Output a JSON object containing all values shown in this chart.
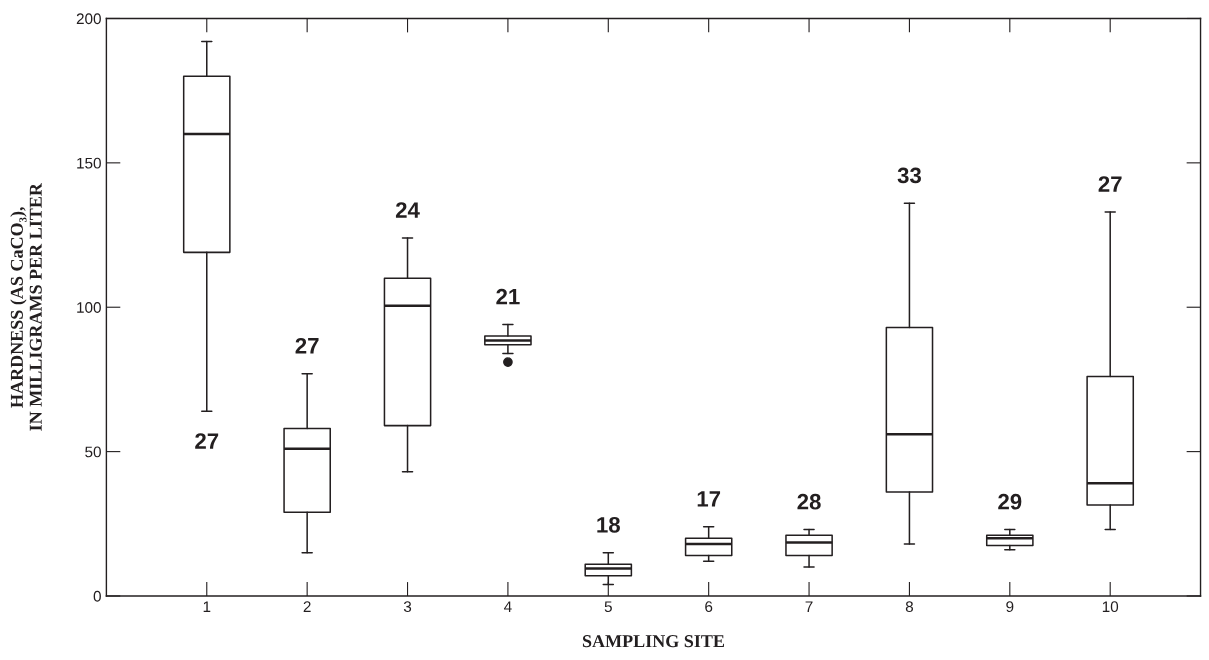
{
  "chart_data": {
    "type": "box",
    "xlabel": "SAMPLING SITE",
    "ylabel": "HARDNESS (AS CaCO₃),\nIN MILLIGRAMS PER LITER",
    "categories": [
      "1",
      "2",
      "3",
      "4",
      "5",
      "6",
      "7",
      "8",
      "9",
      "10"
    ],
    "boxes": [
      {
        "low": 64,
        "q1": 119,
        "median": 160,
        "q3": 180,
        "high": 192
      },
      {
        "low": 15,
        "q1": 29,
        "median": 51,
        "q3": 58,
        "high": 77
      },
      {
        "low": 43,
        "q1": 59,
        "median": 100.5,
        "q3": 110,
        "high": 124
      },
      {
        "low": 84,
        "q1": 87,
        "median": 88.5,
        "q3": 90,
        "high": 94,
        "outliers": [
          81
        ]
      },
      {
        "low": 4,
        "q1": 7,
        "median": 9.5,
        "q3": 11,
        "high": 15
      },
      {
        "low": 12,
        "q1": 14,
        "median": 18,
        "q3": 20,
        "high": 24
      },
      {
        "low": 10,
        "q1": 14,
        "median": 18.5,
        "q3": 21,
        "high": 23
      },
      {
        "low": 18,
        "q1": 36,
        "median": 56,
        "q3": 93,
        "high": 136
      },
      {
        "low": 16,
        "q1": 17.5,
        "median": 20,
        "q3": 21,
        "high": 23
      },
      {
        "low": 23,
        "q1": 31.5,
        "median": 39,
        "q3": 76,
        "high": 133
      }
    ],
    "annotations": [
      "27",
      "27",
      "24",
      "21",
      "18",
      "17",
      "28",
      "33",
      "29",
      "27"
    ],
    "ylim": [
      0,
      200
    ],
    "yticks": [
      0,
      50,
      100,
      150,
      200
    ],
    "grid": false,
    "color": "#231f20"
  }
}
